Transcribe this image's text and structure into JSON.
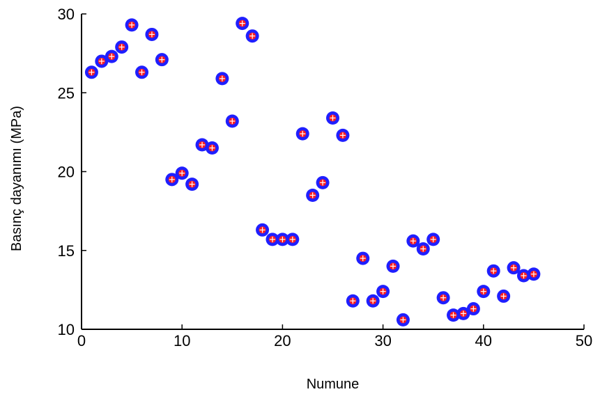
{
  "chart_data": {
    "type": "scatter",
    "title": "",
    "xlabel": "Numune",
    "ylabel": "Basınç dayanımı (MPa)",
    "xlim": [
      0,
      50
    ],
    "ylim": [
      10,
      30
    ],
    "xticks": [
      0,
      10,
      20,
      30,
      40,
      50
    ],
    "yticks": [
      10,
      15,
      20,
      25,
      30
    ],
    "xtick_labels": [
      "0",
      "10",
      "20",
      "30",
      "40",
      "50"
    ],
    "ytick_labels": [
      "10",
      "15",
      "20",
      "25",
      "30"
    ],
    "grid": false,
    "marker_outer_color": "#1f1fff",
    "marker_inner_color": "#ff1f1f",
    "points": [
      {
        "x": 1,
        "y": 26.3
      },
      {
        "x": 2,
        "y": 27.0
      },
      {
        "x": 3,
        "y": 27.3
      },
      {
        "x": 4,
        "y": 27.9
      },
      {
        "x": 5,
        "y": 29.3
      },
      {
        "x": 6,
        "y": 26.3
      },
      {
        "x": 7,
        "y": 28.7
      },
      {
        "x": 8,
        "y": 27.1
      },
      {
        "x": 9,
        "y": 19.5
      },
      {
        "x": 10,
        "y": 19.9
      },
      {
        "x": 11,
        "y": 19.2
      },
      {
        "x": 12,
        "y": 21.7
      },
      {
        "x": 13,
        "y": 21.5
      },
      {
        "x": 14,
        "y": 25.9
      },
      {
        "x": 15,
        "y": 23.2
      },
      {
        "x": 16,
        "y": 29.4
      },
      {
        "x": 17,
        "y": 28.6
      },
      {
        "x": 18,
        "y": 16.3
      },
      {
        "x": 19,
        "y": 15.7
      },
      {
        "x": 20,
        "y": 15.7
      },
      {
        "x": 21,
        "y": 15.7
      },
      {
        "x": 22,
        "y": 22.4
      },
      {
        "x": 23,
        "y": 18.5
      },
      {
        "x": 24,
        "y": 19.3
      },
      {
        "x": 25,
        "y": 23.4
      },
      {
        "x": 26,
        "y": 22.3
      },
      {
        "x": 27,
        "y": 11.8
      },
      {
        "x": 28,
        "y": 14.5
      },
      {
        "x": 29,
        "y": 11.8
      },
      {
        "x": 30,
        "y": 12.4
      },
      {
        "x": 31,
        "y": 14.0
      },
      {
        "x": 32,
        "y": 10.6
      },
      {
        "x": 33,
        "y": 15.6
      },
      {
        "x": 34,
        "y": 15.1
      },
      {
        "x": 35,
        "y": 15.7
      },
      {
        "x": 36,
        "y": 12.0
      },
      {
        "x": 37,
        "y": 10.9
      },
      {
        "x": 38,
        "y": 11.0
      },
      {
        "x": 39,
        "y": 11.3
      },
      {
        "x": 40,
        "y": 12.4
      },
      {
        "x": 41,
        "y": 13.7
      },
      {
        "x": 42,
        "y": 12.1
      },
      {
        "x": 43,
        "y": 13.9
      },
      {
        "x": 44,
        "y": 13.4
      },
      {
        "x": 45,
        "y": 13.5
      }
    ]
  }
}
